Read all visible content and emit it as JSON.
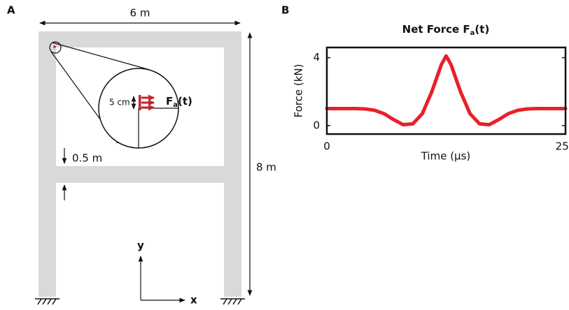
{
  "panel_a": {
    "label": "A",
    "width_label": "6 m",
    "height_label": "8 m",
    "beam_label": "0.5 m",
    "inset_size_label": "5 cm",
    "force_symbol": "F",
    "force_subscript": "a",
    "force_suffix": "(t)",
    "y_axis": "y",
    "x_axis": "x"
  },
  "chart_data": {
    "type": "line",
    "panel_label": "B",
    "title": {
      "text": "Net Force F",
      "subscript": "a",
      "suffix": "(t)"
    },
    "x_label": "Time (µs)",
    "y_label": "Force (kN)",
    "x": [
      0,
      10,
      20,
      30,
      40,
      50,
      60,
      70,
      80,
      90,
      100,
      110,
      120,
      125,
      130,
      140,
      150,
      160,
      170,
      180,
      190,
      200,
      210,
      220,
      230,
      240,
      250
    ],
    "series": [
      {
        "name": "Net force",
        "color": "#e8202a",
        "values": [
          1,
          1,
          1,
          1,
          0.98,
          0.9,
          0.7,
          0.35,
          0.05,
          0.1,
          0.7,
          2.0,
          3.6,
          4.1,
          3.6,
          2.0,
          0.7,
          0.1,
          0.05,
          0.35,
          0.7,
          0.9,
          0.98,
          1,
          1,
          1,
          1
        ]
      }
    ],
    "xlim": [
      0,
      250
    ],
    "xticks": [
      0,
      250
    ],
    "ylim": [
      -0.5,
      4.6
    ],
    "yticks": [
      0,
      4
    ]
  }
}
